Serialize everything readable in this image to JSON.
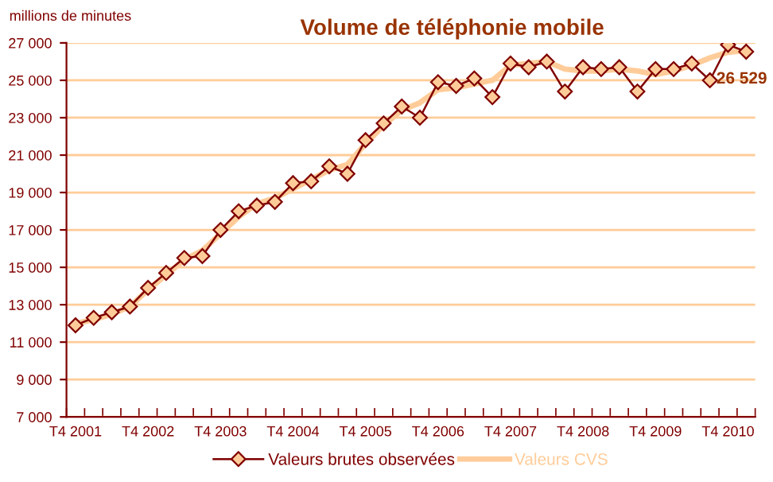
{
  "chart_data": {
    "type": "line",
    "title": "Volume de téléphonie mobile",
    "ylabel": "millions de minutes",
    "categories": [
      "T4 2001",
      null,
      null,
      null,
      "T4 2002",
      null,
      null,
      null,
      "T4 2003",
      null,
      null,
      null,
      "T4 2004",
      null,
      null,
      null,
      "T4 2005",
      null,
      null,
      null,
      "T4 2006",
      null,
      null,
      null,
      "T4 2007",
      null,
      null,
      null,
      "T4 2008",
      null,
      null,
      null,
      "T4 2009",
      null,
      null,
      null,
      "T4 2010",
      null
    ],
    "series": [
      {
        "name": "Valeurs brutes observées",
        "color": "#800000",
        "marker": "diamond",
        "values": [
          11900,
          12300,
          12600,
          12900,
          13900,
          14700,
          15500,
          15600,
          17000,
          18000,
          18300,
          18500,
          19500,
          19600,
          20400,
          20000,
          21800,
          22700,
          23600,
          23000,
          24900,
          24700,
          25100,
          24100,
          25900,
          25700,
          26000,
          24400,
          25700,
          25600,
          25700,
          24400,
          25600,
          25600,
          25900,
          25000,
          26900,
          26529
        ],
        "value_labels": [
          null,
          null,
          null,
          null,
          null,
          null,
          null,
          null,
          null,
          null,
          null,
          null,
          null,
          null,
          null,
          null,
          null,
          null,
          null,
          null,
          null,
          null,
          null,
          null,
          null,
          null,
          null,
          null,
          null,
          null,
          null,
          null,
          null,
          null,
          null,
          null,
          null,
          "26 529"
        ]
      },
      {
        "name": "Valeurs CVS",
        "color": "#ffcc99",
        "marker": "none",
        "values": [
          12000,
          12200,
          12500,
          12900,
          13800,
          14600,
          15400,
          15900,
          16800,
          17700,
          18400,
          18700,
          19200,
          19700,
          20200,
          20500,
          21600,
          22600,
          23400,
          23800,
          24500,
          24600,
          24800,
          25000,
          25800,
          25900,
          26000,
          25600,
          25500,
          25500,
          25600,
          25500,
          25300,
          25500,
          25800,
          26200,
          26500,
          26600
        ]
      }
    ],
    "ylim": [
      7000,
      27000
    ],
    "yticks": [
      {
        "value": 7000,
        "label": "7 000"
      },
      {
        "value": 9000,
        "label": "9 000"
      },
      {
        "value": 11000,
        "label": "11 000"
      },
      {
        "value": 13000,
        "label": "13 000"
      },
      {
        "value": 15000,
        "label": "15 000"
      },
      {
        "value": 17000,
        "label": "17 000"
      },
      {
        "value": 19000,
        "label": "19 000"
      },
      {
        "value": 21000,
        "label": "21 000"
      },
      {
        "value": 23000,
        "label": "23 000"
      },
      {
        "value": 25000,
        "label": "25 000"
      },
      {
        "value": 27000,
        "label": "27 000"
      }
    ],
    "grid": "y",
    "legend": "bottom"
  }
}
